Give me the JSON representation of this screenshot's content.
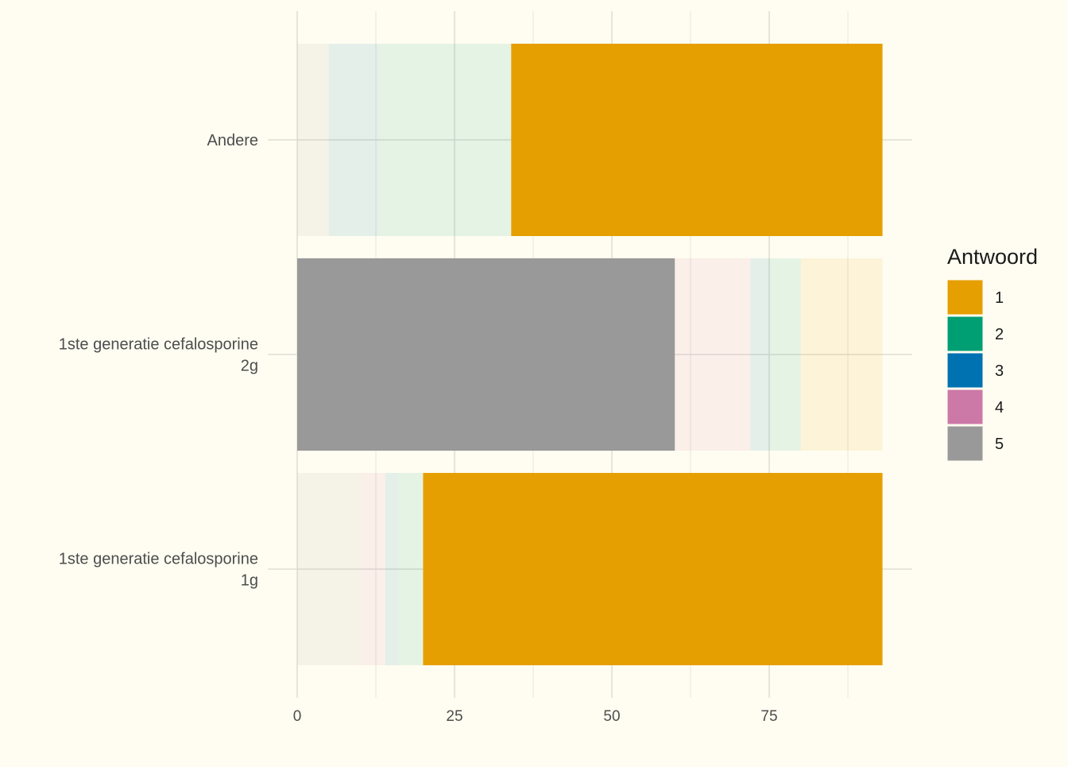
{
  "chart_data": {
    "type": "bar",
    "orientation": "horizontal",
    "stacked": true,
    "title": "",
    "xlabel": "",
    "ylabel": "",
    "xlim": [
      0,
      93
    ],
    "x_ticks": [
      0,
      25,
      50,
      75
    ],
    "grid": true,
    "legend_position": "right",
    "legend_title": "Antwoord",
    "categories": [
      [
        "Andere"
      ],
      [
        "1ste generatie cefalosporine",
        "2g"
      ],
      [
        "1ste generatie cefalosporine",
        "1g"
      ]
    ],
    "series": [
      {
        "name": "1",
        "color": "#E69F00"
      },
      {
        "name": "2",
        "color": "#009E73"
      },
      {
        "name": "3",
        "color": "#0072B2"
      },
      {
        "name": "4",
        "color": "#CC79A7"
      },
      {
        "name": "5",
        "color": "#999999"
      }
    ],
    "bars": [
      {
        "category": "Andere",
        "highlight": "1",
        "segments": [
          {
            "series": "5",
            "start": 0,
            "end": 5
          },
          {
            "series": "3",
            "start": 5,
            "end": 13
          },
          {
            "series": "2",
            "start": 13,
            "end": 34
          },
          {
            "series": "1",
            "start": 34,
            "end": 93
          }
        ]
      },
      {
        "category": "1ste generatie cefalosporine 2g",
        "highlight": "5",
        "segments": [
          {
            "series": "5",
            "start": 0,
            "end": 60
          },
          {
            "series": "4",
            "start": 60,
            "end": 72
          },
          {
            "series": "3",
            "start": 72,
            "end": 75
          },
          {
            "series": "2",
            "start": 75,
            "end": 80
          },
          {
            "series": "1",
            "start": 80,
            "end": 93
          }
        ]
      },
      {
        "category": "1ste generatie cefalosporine 1g",
        "highlight": "1",
        "segments": [
          {
            "series": "5",
            "start": 0,
            "end": 10
          },
          {
            "series": "4",
            "start": 10,
            "end": 14
          },
          {
            "series": "3",
            "start": 14,
            "end": 16
          },
          {
            "series": "2",
            "start": 16,
            "end": 20
          },
          {
            "series": "1",
            "start": 20,
            "end": 93
          }
        ]
      }
    ]
  }
}
